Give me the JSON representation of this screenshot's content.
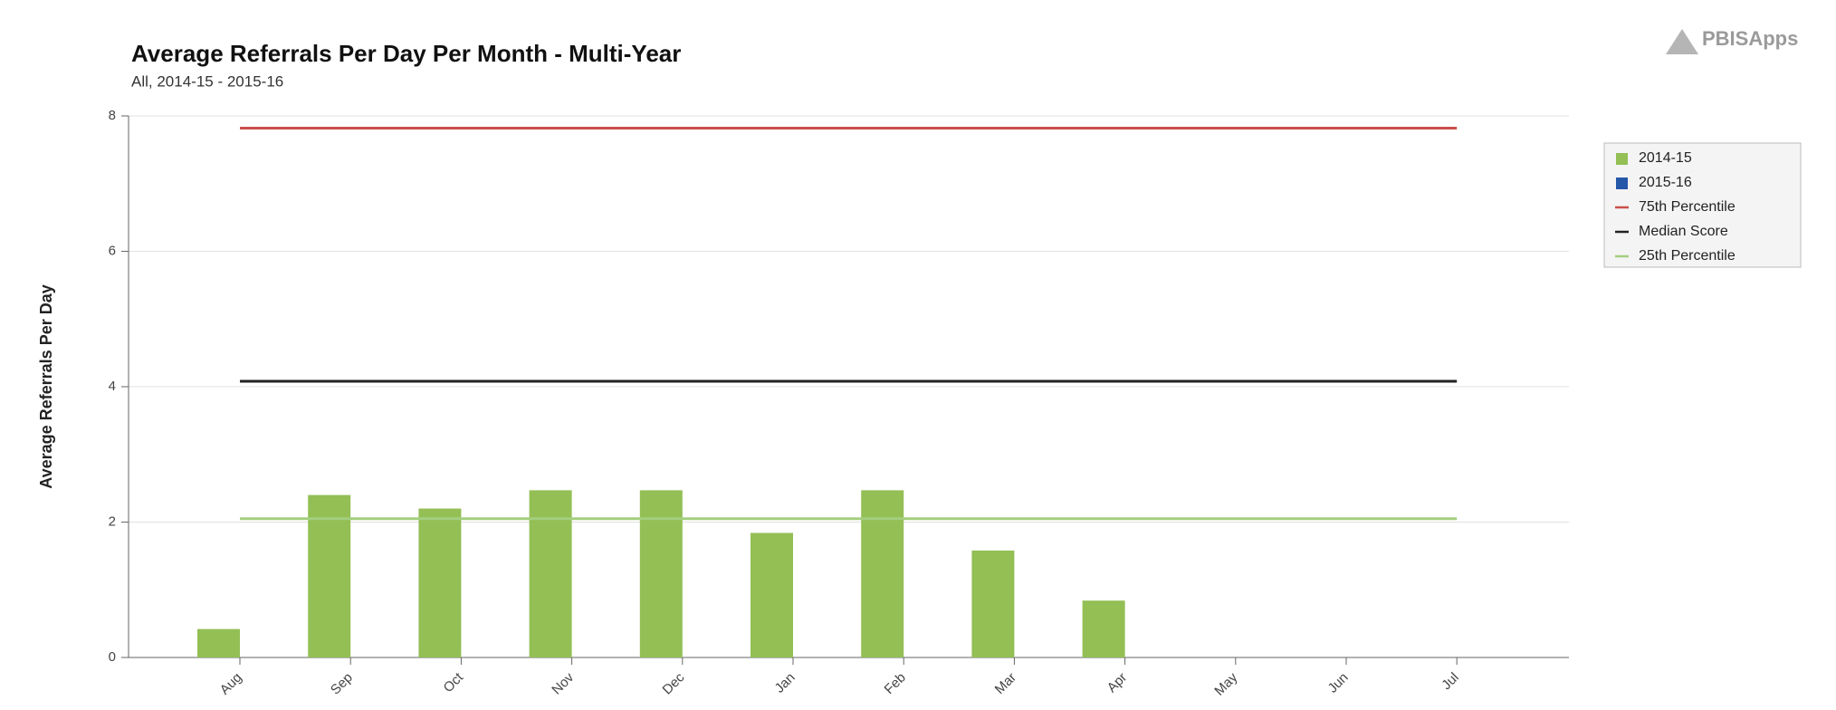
{
  "chart_data": {
    "type": "bar",
    "title": "Average Referrals Per Day Per Month - Multi-Year",
    "subtitle": "All, 2014-15 - 2015-16",
    "y_label": "Average Referrals Per Day",
    "logo": "PBISApps",
    "categories": [
      "Aug",
      "Sep",
      "Oct",
      "Nov",
      "Dec",
      "Jan",
      "Feb",
      "Mar",
      "Apr",
      "May",
      "Jun",
      "Jul"
    ],
    "series": [
      {
        "name": "2014-15",
        "type": "bar",
        "color": "#93bf55",
        "values": [
          0.42,
          2.4,
          2.2,
          2.47,
          2.47,
          1.84,
          2.47,
          1.58,
          0.84,
          null,
          null,
          null
        ]
      },
      {
        "name": "2015-16",
        "type": "bar",
        "color": "#2457a8",
        "values": [
          null,
          null,
          null,
          null,
          null,
          null,
          null,
          null,
          null,
          null,
          null,
          null
        ]
      },
      {
        "name": "75th Percentile",
        "type": "line",
        "color": "#c9504a",
        "values": [
          7.82,
          7.82,
          7.82,
          7.82,
          7.82,
          7.82,
          7.82,
          7.82,
          7.82,
          7.82,
          7.82,
          7.82
        ]
      },
      {
        "name": "Median Score",
        "type": "line",
        "color": "#222222",
        "values": [
          4.08,
          4.08,
          4.08,
          4.08,
          4.08,
          4.08,
          4.08,
          4.08,
          4.08,
          4.08,
          4.08,
          4.08
        ]
      },
      {
        "name": "25th Percentile",
        "type": "line",
        "color": "#a3cf7e",
        "values": [
          2.05,
          2.05,
          2.05,
          2.05,
          2.05,
          2.05,
          2.05,
          2.05,
          2.05,
          2.05,
          2.05,
          2.05
        ]
      }
    ],
    "ylim": [
      0,
      8
    ],
    "yticks": [
      0,
      2,
      4,
      6,
      8
    ],
    "grid": true,
    "legend": "right"
  }
}
